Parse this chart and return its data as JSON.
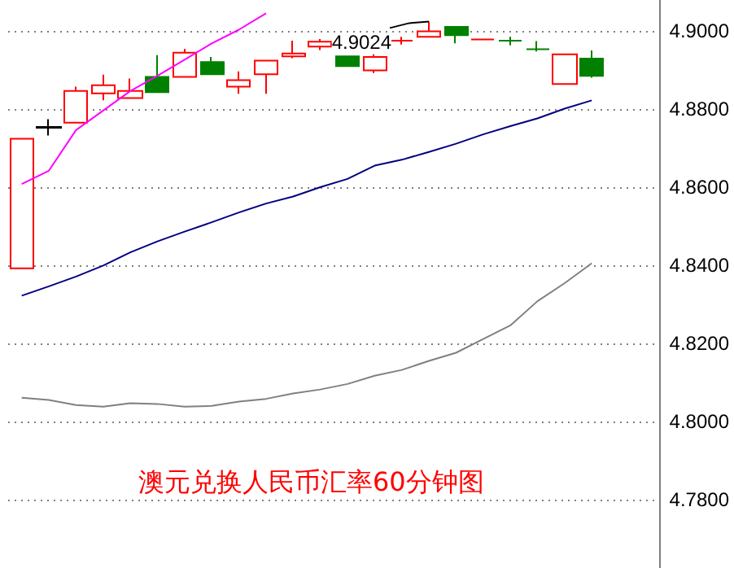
{
  "chart_data": {
    "type": "candlestick",
    "title": "澳元兑换人民币汇率60分钟图",
    "categories": [
      null,
      null,
      null,
      null,
      null,
      null,
      null,
      null,
      null,
      null,
      null,
      null,
      null,
      null,
      null,
      null,
      null,
      null,
      null,
      null,
      null,
      null
    ],
    "ohlc": [
      [
        4.8392,
        4.8724,
        4.8392,
        4.8724
      ],
      [
        4.8752,
        4.8774,
        4.8732,
        4.8754
      ],
      [
        4.8765,
        4.8857,
        4.8765,
        4.8846
      ],
      [
        4.884,
        4.8888,
        4.8822,
        4.8861
      ],
      [
        4.8828,
        4.8878,
        4.8828,
        4.8846
      ],
      [
        4.8882,
        4.8938,
        4.8843,
        4.8843
      ],
      [
        4.8882,
        4.8954,
        4.8882,
        4.8944
      ],
      [
        4.892,
        4.8933,
        4.8889,
        4.8889
      ],
      [
        4.8857,
        4.8896,
        4.8839,
        4.8874
      ],
      [
        4.8889,
        4.8924,
        4.8839,
        4.8924
      ],
      [
        4.8935,
        4.8975,
        4.893,
        4.8942
      ],
      [
        4.896,
        4.8979,
        4.8951,
        4.8972
      ],
      [
        4.8935,
        4.8935,
        4.891,
        4.891
      ],
      [
        4.8899,
        4.894,
        4.8892,
        4.8933
      ],
      [
        4.8975,
        4.8985,
        4.8965,
        4.8975
      ],
      [
        4.8985,
        4.9024,
        4.8985,
        4.8999
      ],
      [
        4.901,
        4.901,
        4.8968,
        4.8989
      ],
      [
        4.8978,
        4.8978,
        4.8978,
        4.8978
      ],
      [
        4.8975,
        4.8985,
        4.8963,
        4.8975
      ],
      [
        4.8953,
        4.8974,
        4.8947,
        4.8953
      ],
      [
        4.8864,
        4.894,
        4.8864,
        4.894
      ],
      [
        4.8929,
        4.895,
        4.888,
        4.8885
      ]
    ],
    "colors": [
      "#ff0000",
      "#000000",
      "#ff0000",
      "#ff0000",
      "#ff0000",
      "#008000",
      "#ff0000",
      "#008000",
      "#ff0000",
      "#ff0000",
      "#ff0000",
      "#ff0000",
      "#008000",
      "#ff0000",
      "#ff0000",
      "#ff0000",
      "#008000",
      "#ff0000",
      "#008000",
      "#008000",
      "#ff0000",
      "#008000"
    ],
    "series": [
      {
        "type": "line",
        "color": "#ff00ff",
        "values": [
          4.8608,
          4.8642,
          4.8746,
          4.8796,
          4.8846,
          4.8885,
          4.8926,
          4.8968,
          4.9003,
          4.9045,
          null,
          null,
          null,
          null,
          null,
          null,
          null,
          null,
          null,
          null,
          null,
          null
        ]
      },
      {
        "type": "line",
        "color": "#000080",
        "values": [
          4.8322,
          4.8346,
          4.8371,
          4.8399,
          4.8433,
          4.8461,
          4.8486,
          4.851,
          4.8535,
          4.8558,
          4.8576,
          4.86,
          4.8621,
          4.8655,
          4.867,
          4.869,
          4.8711,
          4.8735,
          4.8756,
          4.8776,
          4.8801,
          4.8822
        ]
      },
      {
        "type": "line",
        "color": "#808080",
        "values": [
          4.8061,
          4.8055,
          4.8042,
          4.8038,
          4.8047,
          4.8045,
          4.8038,
          4.804,
          4.8051,
          4.8058,
          4.8072,
          4.8082,
          4.8096,
          4.8117,
          4.8132,
          4.8155,
          4.8176,
          4.8211,
          4.8246,
          4.8308,
          4.8354,
          4.8405
        ]
      }
    ],
    "annotations": [
      "4.9024"
    ],
    "ylim": [
      4.7625,
      4.9079
    ],
    "yticks": [
      {
        "value": 4.78,
        "label": "4.7800"
      },
      {
        "value": 4.8,
        "label": "4.8000"
      },
      {
        "value": 4.82,
        "label": "4.8200"
      },
      {
        "value": 4.84,
        "label": "4.8400"
      },
      {
        "value": 4.86,
        "label": "4.8600"
      },
      {
        "value": 4.88,
        "label": "4.8800"
      },
      {
        "value": 4.9,
        "label": "4.9000"
      }
    ],
    "grid": "y",
    "tick_labels": "y",
    "marker": "none",
    "line_style": "solid"
  }
}
